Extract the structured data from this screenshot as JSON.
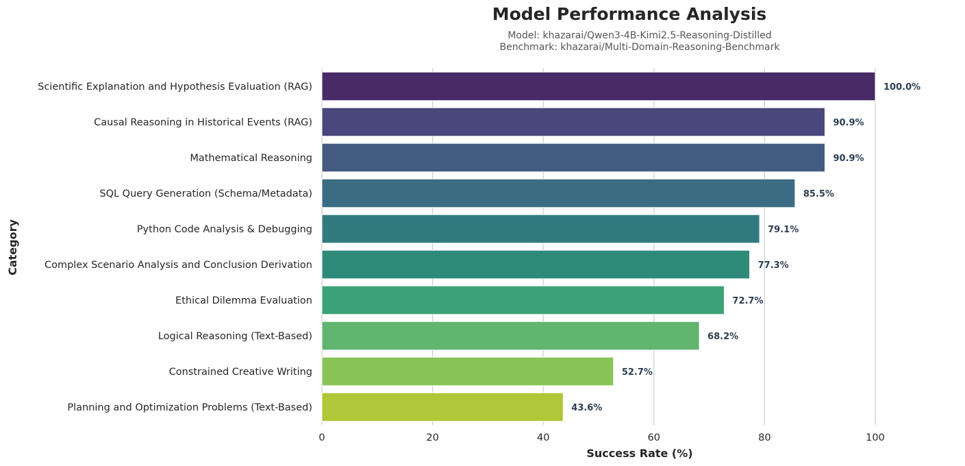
{
  "chart_data": {
    "type": "bar",
    "orientation": "horizontal",
    "title": "Model Performance Analysis",
    "subtitle_lines": [
      "Model: khazarai/Qwen3-4B-Kimi2.5-Reasoning-Distilled",
      "Benchmark: khazarai/Multi-Domain-Reasoning-Benchmark"
    ],
    "xlabel": "Success Rate (%)",
    "ylabel": "Category",
    "xlim": [
      0,
      100
    ],
    "xticks": [
      0,
      20,
      40,
      60,
      80,
      100
    ],
    "grid": "vertical",
    "categories": [
      "Scientific Explanation and Hypothesis Evaluation (RAG)",
      "Causal Reasoning in Historical Events (RAG)",
      "Mathematical Reasoning",
      "SQL Query Generation (Schema/Metadata)",
      "Python Code Analysis & Debugging",
      "Complex Scenario Analysis and Conclusion Derivation",
      "Ethical Dilemma Evaluation",
      "Logical Reasoning (Text-Based)",
      "Constrained Creative Writing",
      "Planning and Optimization Problems (Text-Based)"
    ],
    "values": [
      100.0,
      90.9,
      90.9,
      85.5,
      79.1,
      77.3,
      72.7,
      68.2,
      52.7,
      43.6
    ],
    "value_labels": [
      "100.0%",
      "90.9%",
      "90.9%",
      "85.5%",
      "79.1%",
      "77.3%",
      "72.7%",
      "68.2%",
      "52.7%",
      "43.6%"
    ],
    "colors": [
      "#482a66",
      "#49477c",
      "#445c80",
      "#3b6c83",
      "#317b7f",
      "#2e8b7a",
      "#3ba277",
      "#61b56e",
      "#88c458",
      "#b0c737"
    ]
  }
}
